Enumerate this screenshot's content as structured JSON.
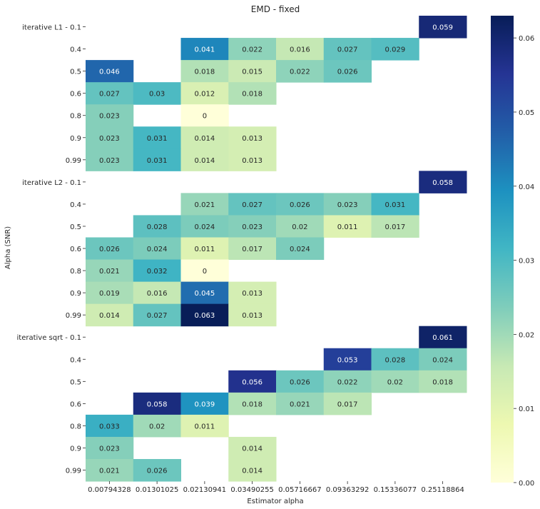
{
  "chart_data": {
    "type": "heatmap",
    "title": "EMD - fixed",
    "xlabel": "Estimator alpha",
    "ylabel": "Alpha (SNR)",
    "x_categories": [
      "0.00794328",
      "0.01301025",
      "0.02130941",
      "0.03490255",
      "0.05716667",
      "0.09363292",
      "0.15336077",
      "0.25118864"
    ],
    "y_categories": [
      "iterative L1 - 0.1",
      "0.4",
      "0.5",
      "0.6",
      "0.8",
      "0.9",
      "0.99",
      "iterative L2 - 0.1",
      "0.4",
      "0.5",
      "0.6",
      "0.8",
      "0.9",
      "0.99",
      "iterative sqrt - 0.1",
      "0.4",
      "0.5",
      "0.6",
      "0.8",
      "0.9",
      "0.99"
    ],
    "values": [
      [
        null,
        null,
        null,
        null,
        null,
        null,
        null,
        0.059
      ],
      [
        null,
        null,
        0.041,
        0.022,
        0.016,
        0.027,
        0.029,
        null
      ],
      [
        0.046,
        null,
        0.018,
        0.015,
        0.022,
        0.026,
        null,
        null
      ],
      [
        0.027,
        0.03,
        0.012,
        0.018,
        null,
        null,
        null,
        null
      ],
      [
        0.023,
        null,
        0,
        null,
        null,
        null,
        null,
        null
      ],
      [
        0.023,
        0.031,
        0.014,
        0.013,
        null,
        null,
        null,
        null
      ],
      [
        0.023,
        0.031,
        0.014,
        0.013,
        null,
        null,
        null,
        null
      ],
      [
        null,
        null,
        null,
        null,
        null,
        null,
        null,
        0.058
      ],
      [
        null,
        null,
        0.021,
        0.027,
        0.026,
        0.023,
        0.031,
        null
      ],
      [
        null,
        0.028,
        0.024,
        0.023,
        0.02,
        0.011,
        0.017,
        null
      ],
      [
        0.026,
        0.024,
        0.011,
        0.017,
        0.024,
        null,
        null,
        null
      ],
      [
        0.021,
        0.032,
        0,
        null,
        null,
        null,
        null,
        null
      ],
      [
        0.019,
        0.016,
        0.045,
        0.013,
        null,
        null,
        null,
        null
      ],
      [
        0.014,
        0.027,
        0.063,
        0.013,
        null,
        null,
        null,
        null
      ],
      [
        null,
        null,
        null,
        null,
        null,
        null,
        null,
        0.061
      ],
      [
        null,
        null,
        null,
        null,
        null,
        0.053,
        0.028,
        0.024
      ],
      [
        null,
        null,
        null,
        0.056,
        0.026,
        0.022,
        0.02,
        0.018
      ],
      [
        null,
        0.058,
        0.039,
        0.018,
        0.021,
        0.017,
        null,
        null
      ],
      [
        0.033,
        0.02,
        0.011,
        null,
        null,
        null,
        null,
        null
      ],
      [
        0.023,
        null,
        null,
        0.014,
        null,
        null,
        null,
        null
      ],
      [
        0.021,
        0.026,
        null,
        0.014,
        null,
        null,
        null,
        null
      ]
    ],
    "colormap": "YlGnBu",
    "colorbar": {
      "min": 0,
      "max": 0.063,
      "ticks": [
        0.0,
        0.01,
        0.02,
        0.03,
        0.04,
        0.05,
        0.06
      ],
      "tick_labels": [
        "0.00",
        "0.01",
        "0.02",
        "0.03",
        "0.04",
        "0.05",
        "0.06"
      ]
    },
    "grid": false,
    "legend": "colorbar-right"
  }
}
